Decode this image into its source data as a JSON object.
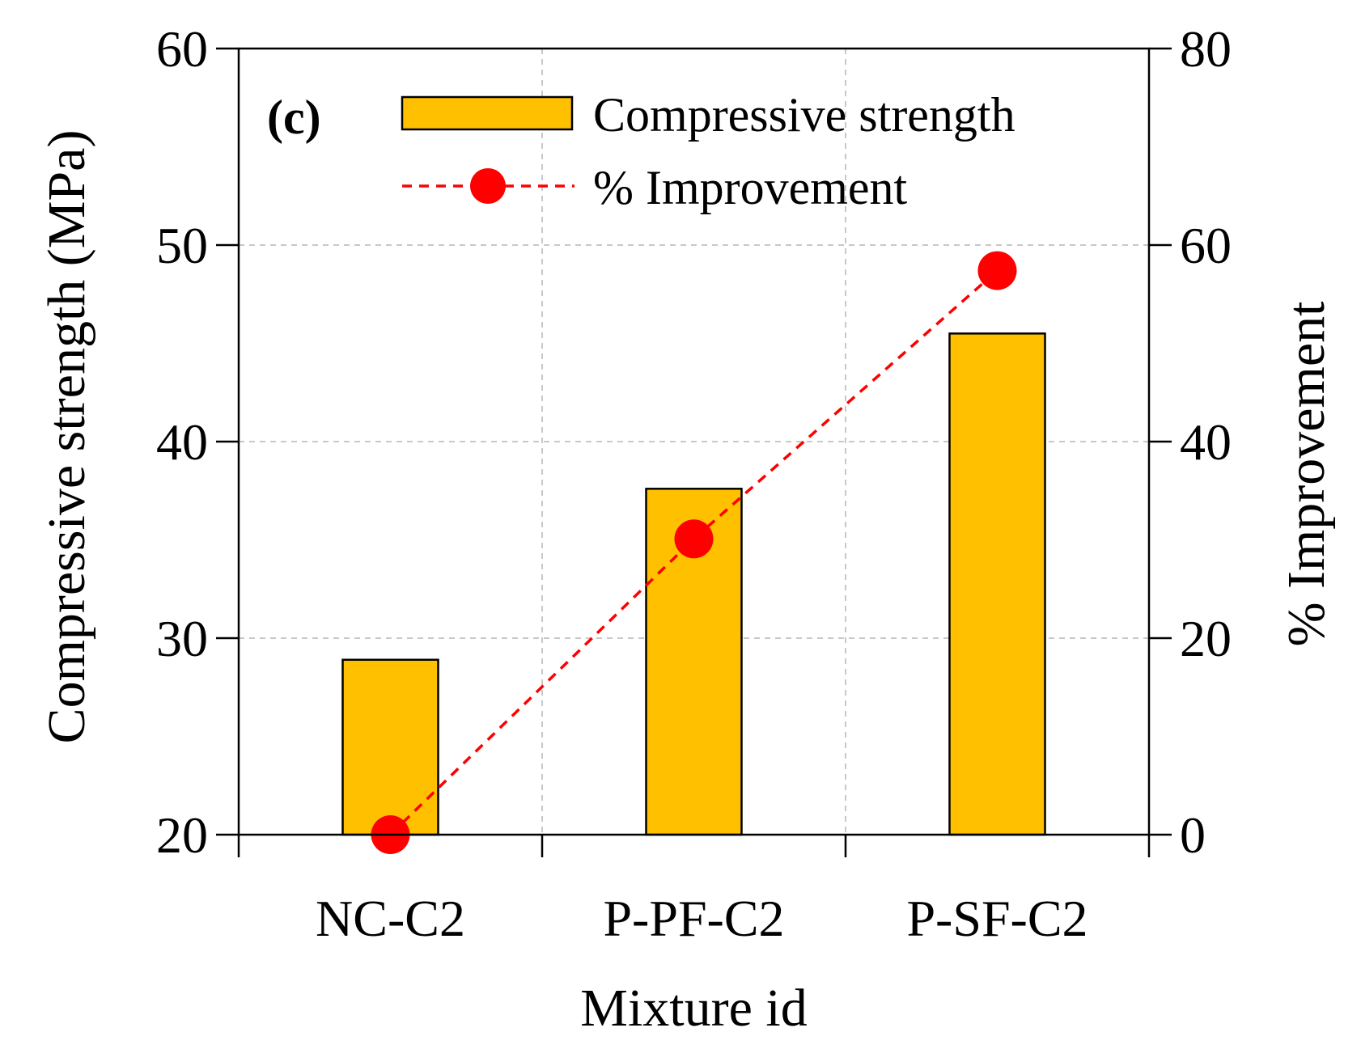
{
  "chart_data": {
    "type": "bar",
    "panel_label": "(c)",
    "categories": [
      "NC-C2",
      "P-PF-C2",
      "P-SF-C2"
    ],
    "series": [
      {
        "name": "Compressive strength",
        "kind": "bar",
        "axis": "left",
        "color": "#FFC000",
        "values": [
          28.9,
          37.6,
          45.5
        ]
      },
      {
        "name": "% Improvement",
        "kind": "line",
        "axis": "right",
        "color": "#FF0000",
        "line_style": "dashed",
        "marker": "circle",
        "values": [
          0,
          30.1,
          57.4
        ]
      }
    ],
    "xlabel": "Mixture id",
    "ylabel": "Compressive strength (MPa)",
    "y2label": "% Improvement",
    "ylim": [
      20,
      60
    ],
    "yticks": [
      "20",
      "30",
      "40",
      "50",
      "60"
    ],
    "y2lim": [
      0,
      80
    ],
    "y2ticks": [
      "0",
      "20",
      "40",
      "60",
      "80"
    ],
    "grid": true,
    "legend_position": "top-right"
  }
}
